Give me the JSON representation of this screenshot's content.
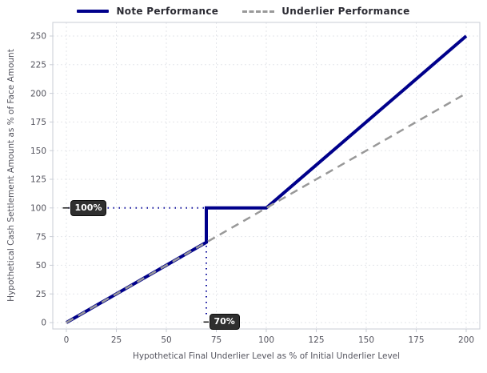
{
  "legend": {
    "items": [
      {
        "label": "Note Performance",
        "color": "#00008B",
        "line_style": "solid"
      },
      {
        "label": "Underlier Performance",
        "color": "#999999",
        "line_style": "dashed"
      }
    ]
  },
  "chart_data": {
    "type": "line",
    "title": "",
    "xlabel": "Hypothetical Final Underlier Level as % of Initial Underlier Level",
    "ylabel": "Hypothetical Cash Settlement Amount as % of Face Amount",
    "xticks": [
      0,
      25,
      50,
      75,
      100,
      125,
      150,
      175,
      200
    ],
    "yticks": [
      0,
      25,
      50,
      75,
      100,
      125,
      150,
      175,
      200,
      225,
      250
    ],
    "xlim": [
      -7,
      207
    ],
    "ylim": [
      -6,
      262
    ],
    "grid": true,
    "legend_position": "top",
    "series": [
      {
        "name": "Note Performance",
        "color": "#00008B",
        "style": "solid",
        "width": 4,
        "points": [
          [
            0,
            0
          ],
          [
            70,
            70
          ],
          [
            70,
            100
          ],
          [
            100,
            100
          ],
          [
            200,
            250
          ]
        ]
      },
      {
        "name": "Underlier Performance",
        "color": "#999999",
        "style": "dashed",
        "width": 2.5,
        "points": [
          [
            0,
            0
          ],
          [
            200,
            200
          ]
        ]
      }
    ],
    "annotations": [
      {
        "label": "100%",
        "color": "#12129e",
        "dotted_line": [
          [
            1,
            100
          ],
          [
            70,
            100
          ]
        ],
        "connector": [
          [
            -1.8,
            100
          ],
          [
            1.6,
            100
          ]
        ],
        "badge_anchor": [
          1.8,
          100
        ]
      },
      {
        "label": "70%",
        "color": "#12129e",
        "dotted_line": [
          [
            70,
            67
          ],
          [
            70,
            4
          ]
        ],
        "connector": [
          [
            68.6,
            0.5
          ],
          [
            71.2,
            0.5
          ]
        ],
        "badge_anchor": [
          71.4,
          0.5
        ]
      }
    ],
    "colors": {
      "grid": "#e3e5ea",
      "spine": "#c9cdd6",
      "tick_label": "#54545e",
      "axis_label": "#54545e",
      "connector": "#1a1a1a",
      "badge_bg": "#2f2f2f",
      "badge_text": "#ffffff"
    }
  }
}
